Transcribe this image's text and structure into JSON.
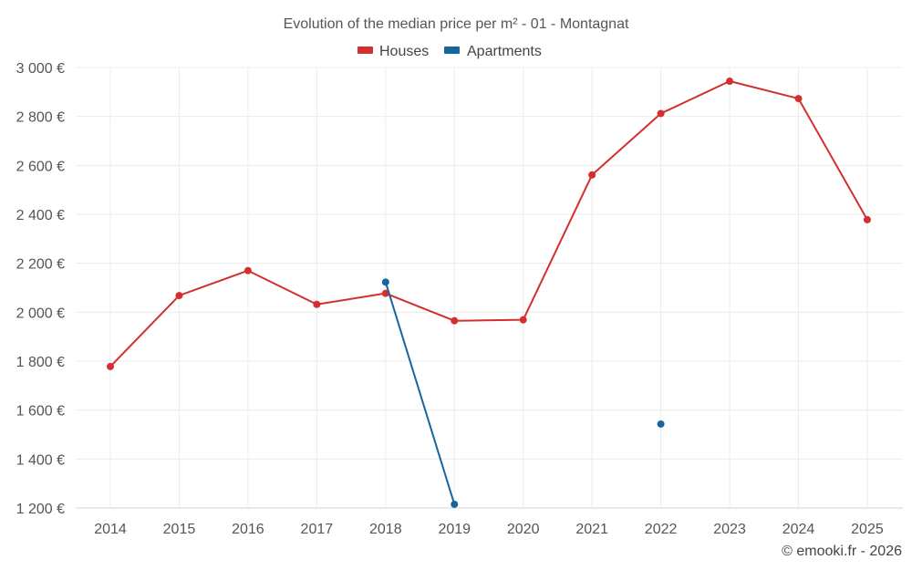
{
  "chart_data": {
    "type": "line",
    "title": "Evolution of the median price per m² - 01 - Montagnat",
    "xlabel": "",
    "ylabel": "",
    "categories": [
      "2014",
      "2015",
      "2016",
      "2017",
      "2018",
      "2019",
      "2020",
      "2021",
      "2022",
      "2023",
      "2024",
      "2025"
    ],
    "y_ticks": [
      "1 200 €",
      "1 400 €",
      "1 600 €",
      "1 800 €",
      "2 000 €",
      "2 200 €",
      "2 400 €",
      "2 600 €",
      "2 800 €",
      "3 000 €"
    ],
    "ylim": [
      1200,
      3000
    ],
    "grid": true,
    "legend_position": "top-center",
    "series": [
      {
        "name": "Houses",
        "color": "#d32f2f",
        "values": [
          1778,
          2068,
          2170,
          2032,
          2077,
          1965,
          1969,
          2561,
          2812,
          2944,
          2873,
          2378
        ]
      },
      {
        "name": "Apartments",
        "color": "#1565a0",
        "values": [
          null,
          null,
          null,
          null,
          2123,
          1215,
          null,
          null,
          1543,
          null,
          null,
          null
        ]
      }
    ]
  },
  "credit": "© emooki.fr - 2026"
}
